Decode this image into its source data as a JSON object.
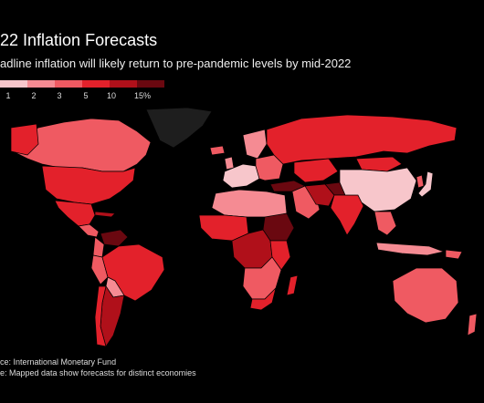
{
  "header": {
    "title": "22 Inflation Forecasts",
    "subtitle": "adline inflation will likely return to pre-pandemic levels by mid-2022"
  },
  "legend": {
    "ticks": [
      "1",
      "2",
      "3",
      "5",
      "10",
      "15%"
    ],
    "colors": [
      "#f7c6cb",
      "#f58b93",
      "#ef5a62",
      "#e3212b",
      "#b0101a",
      "#6a0810"
    ]
  },
  "colors": {
    "background": "#000000",
    "border": "#000000",
    "no_data": "#1e1e1e"
  },
  "footer": {
    "source": "ce: International Monetary Fund",
    "note": "e: Mapped data show forecasts for distinct economies"
  }
}
